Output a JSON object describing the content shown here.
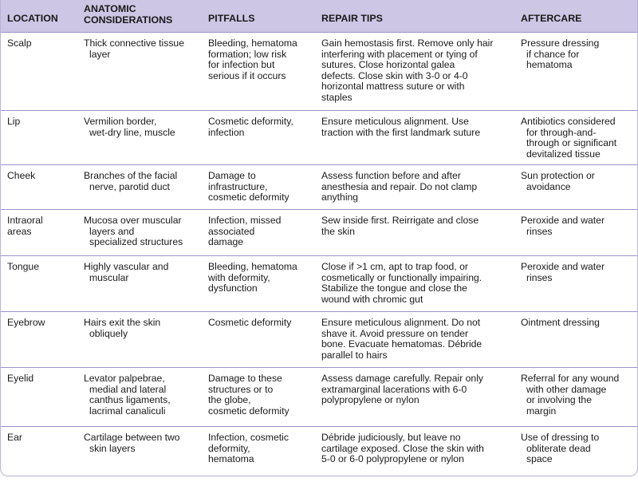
{
  "table": {
    "header": [
      [
        "LOCATION"
      ],
      [
        "ANATOMIC",
        "CONSIDERATIONS"
      ],
      [
        "PITFALLS"
      ],
      [
        "REPAIR TIPS"
      ],
      [
        "AFTERCARE"
      ]
    ],
    "rows": [
      [
        [
          "Scalp"
        ],
        [
          "Thick connective tissue",
          "layer"
        ],
        [
          "Bleeding, hematoma",
          "formation; low risk",
          "for infection but",
          "serious if it occurs"
        ],
        [
          "Gain hemostasis first. Remove only hair",
          "interfering with placement or tying of",
          "sutures. Close horizontal galea",
          "defects. Close skin with 3-0 or 4-0",
          "horizontal mattress suture or with",
          "staples"
        ],
        [
          "Pressure dressing",
          "if chance for",
          "hematoma"
        ]
      ],
      [
        [
          "Lip"
        ],
        [
          "Vermilion border,",
          "wet-dry line, muscle"
        ],
        [
          "Cosmetic deformity,",
          "infection"
        ],
        [
          "Ensure meticulous alignment. Use",
          "traction with the first landmark suture"
        ],
        [
          "Antibiotics considered",
          "for through-and-",
          "through or significant",
          "devitalized tissue"
        ]
      ],
      [
        [
          "Cheek"
        ],
        [
          "Branches of the facial",
          "nerve, parotid duct"
        ],
        [
          "Damage to",
          "infrastructure,",
          "cosmetic deformity"
        ],
        [
          "Assess function before and after",
          "anesthesia and repair. Do not clamp",
          "anything"
        ],
        [
          "Sun protection or",
          "avoidance"
        ]
      ],
      [
        [
          "Intraoral",
          "areas"
        ],
        [
          "Mucosa over muscular",
          "layers and",
          "specialized structures"
        ],
        [
          "Infection, missed",
          "associated",
          "damage"
        ],
        [
          "Sew inside first. Reirrigate and close",
          "the skin"
        ],
        [
          "Peroxide and water",
          "rinses"
        ]
      ],
      [
        [
          "Tongue"
        ],
        [
          "Highly vascular and",
          "muscular"
        ],
        [
          "Bleeding, hematoma",
          "with deformity,",
          "dysfunction"
        ],
        [
          "Close if >1 cm, apt to trap food, or",
          "cosmetically or functionally impairing.",
          "Stabilize the tongue and close the",
          "wound with chromic gut"
        ],
        [
          "Peroxide and water",
          "rinses"
        ]
      ],
      [
        [
          "Eyebrow"
        ],
        [
          "Hairs exit the skin",
          "obliquely"
        ],
        [
          "Cosmetic deformity"
        ],
        [
          "Ensure meticulous alignment. Do not",
          "shave it. Avoid pressure on tender",
          "bone. Evacuate hematomas. Débride",
          "parallel to hairs"
        ],
        [
          "Ointment dressing"
        ]
      ],
      [
        [
          "Eyelid"
        ],
        [
          "Levator palpebrae,",
          "medial and lateral",
          "canthus ligaments,",
          "lacrimal canaliculi"
        ],
        [
          "Damage to these",
          "structures or to",
          "the globe,",
          "cosmetic deformity"
        ],
        [
          "Assess damage carefully. Repair only",
          "extramarginal lacerations with 6-0",
          "polypropylene or nylon"
        ],
        [
          "Referral for any wound",
          "with other damage",
          "or involving the",
          "margin"
        ]
      ],
      [
        [
          "Ear"
        ],
        [
          "Cartilage between two",
          "skin layers"
        ],
        [
          "Infection, cosmetic",
          "deformity,",
          "hematoma"
        ],
        [
          "Débride judiciously, but leave no",
          "cartilage exposed. Close the skin with",
          "5-0 or 6-0 polypropylene or nylon"
        ],
        [
          "Use of dressing to",
          "obliterate dead",
          "space"
        ]
      ]
    ]
  }
}
